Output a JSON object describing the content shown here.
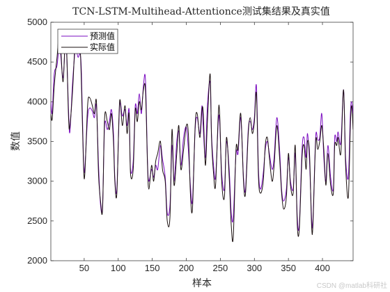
{
  "chart_data": {
    "type": "line",
    "title": "TCN-LSTM-Multihead-Attentionce测试集结果及真实值",
    "xlabel": "样本",
    "ylabel": "数值",
    "xlim": [
      1,
      445
    ],
    "ylim": [
      2000,
      5000
    ],
    "xticks": [
      50,
      100,
      150,
      200,
      250,
      300,
      350,
      400
    ],
    "yticks": [
      2000,
      2500,
      3000,
      3500,
      4000,
      4500,
      5000
    ],
    "grid": false,
    "legend_position": "top-left",
    "series": [
      {
        "name": "预测值",
        "color": "#7a0bc0",
        "keypoints": [
          [
            1,
            4000
          ],
          [
            3,
            3860
          ],
          [
            6,
            4350
          ],
          [
            10,
            4450
          ],
          [
            14,
            4700
          ],
          [
            19,
            4300
          ],
          [
            23,
            4800
          ],
          [
            27,
            3900
          ],
          [
            29,
            3620
          ],
          [
            33,
            4250
          ],
          [
            37,
            4650
          ],
          [
            41,
            4560
          ],
          [
            44,
            4600
          ],
          [
            46,
            4350
          ],
          [
            49,
            3250
          ],
          [
            51,
            3180
          ],
          [
            55,
            3800
          ],
          [
            58,
            3920
          ],
          [
            62,
            3880
          ],
          [
            65,
            3800
          ],
          [
            68,
            3950
          ],
          [
            71,
            3220
          ],
          [
            74,
            2700
          ],
          [
            77,
            2700
          ],
          [
            80,
            3700
          ],
          [
            84,
            3650
          ],
          [
            87,
            3750
          ],
          [
            90,
            3900
          ],
          [
            93,
            3600
          ],
          [
            95,
            3050
          ],
          [
            98,
            2900
          ],
          [
            102,
            3950
          ],
          [
            106,
            3820
          ],
          [
            110,
            3900
          ],
          [
            113,
            3700
          ],
          [
            116,
            3900
          ],
          [
            118,
            3150
          ],
          [
            122,
            3250
          ],
          [
            125,
            3950
          ],
          [
            128,
            3850
          ],
          [
            131,
            4100
          ],
          [
            134,
            3850
          ],
          [
            137,
            4200
          ],
          [
            140,
            4280
          ],
          [
            143,
            3250
          ],
          [
            145,
            3000
          ],
          [
            149,
            3150
          ],
          [
            152,
            3050
          ],
          [
            155,
            3200
          ],
          [
            158,
            3150
          ],
          [
            162,
            3450
          ],
          [
            165,
            3280
          ],
          [
            169,
            3050
          ],
          [
            172,
            2600
          ],
          [
            176,
            2700
          ],
          [
            179,
            3450
          ],
          [
            182,
            3000
          ],
          [
            186,
            3500
          ],
          [
            189,
            3620
          ],
          [
            192,
            3200
          ],
          [
            196,
            3550
          ],
          [
            200,
            3680
          ],
          [
            203,
            3400
          ],
          [
            206,
            2950
          ],
          [
            209,
            2750
          ],
          [
            213,
            3650
          ],
          [
            216,
            3800
          ],
          [
            220,
            3600
          ],
          [
            223,
            3950
          ],
          [
            225,
            3650
          ],
          [
            228,
            3300
          ],
          [
            231,
            3950
          ],
          [
            235,
            4250
          ],
          [
            237,
            3600
          ],
          [
            240,
            3200
          ],
          [
            243,
            3050
          ],
          [
            247,
            3750
          ],
          [
            249,
            3750
          ],
          [
            252,
            3100
          ],
          [
            256,
            2900
          ],
          [
            259,
            3500
          ],
          [
            263,
            3150
          ],
          [
            266,
            2600
          ],
          [
            269,
            2550
          ],
          [
            273,
            3350
          ],
          [
            276,
            3350
          ],
          [
            280,
            3800
          ],
          [
            284,
            3050
          ],
          [
            287,
            2900
          ],
          [
            291,
            3650
          ],
          [
            294,
            3750
          ],
          [
            297,
            3650
          ],
          [
            300,
            3800
          ],
          [
            303,
            4200
          ],
          [
            306,
            3150
          ],
          [
            309,
            2900
          ],
          [
            313,
            3100
          ],
          [
            316,
            3400
          ],
          [
            319,
            3500
          ],
          [
            322,
            3350
          ],
          [
            326,
            3150
          ],
          [
            329,
            3300
          ],
          [
            333,
            3800
          ],
          [
            337,
            3400
          ],
          [
            340,
            2900
          ],
          [
            343,
            2750
          ],
          [
            347,
            2900
          ],
          [
            350,
            3300
          ],
          [
            353,
            3000
          ],
          [
            357,
            2900
          ],
          [
            360,
            3350
          ],
          [
            363,
            2550
          ],
          [
            366,
            2450
          ],
          [
            370,
            3400
          ],
          [
            373,
            3550
          ],
          [
            376,
            3300
          ],
          [
            378,
            3600
          ],
          [
            381,
            3250
          ],
          [
            384,
            2550
          ],
          [
            386,
            2500
          ],
          [
            390,
            3550
          ],
          [
            393,
            3520
          ],
          [
            396,
            3550
          ],
          [
            399,
            3850
          ],
          [
            402,
            3300
          ],
          [
            405,
            3000
          ],
          [
            408,
            3450
          ],
          [
            412,
            3050
          ],
          [
            416,
            2900
          ],
          [
            418,
            3550
          ],
          [
            421,
            3500
          ],
          [
            423,
            3620
          ],
          [
            427,
            3480
          ],
          [
            431,
            4150
          ],
          [
            434,
            3300
          ],
          [
            438,
            3050
          ],
          [
            441,
            3850
          ],
          [
            443,
            4000
          ],
          [
            445,
            3850
          ]
        ]
      },
      {
        "name": "实际值",
        "color": "#1a0f0f",
        "keypoints": [
          [
            1,
            3850
          ],
          [
            3,
            3780
          ],
          [
            6,
            4200
          ],
          [
            10,
            4550
          ],
          [
            14,
            4850
          ],
          [
            19,
            4250
          ],
          [
            23,
            4900
          ],
          [
            27,
            3800
          ],
          [
            29,
            3700
          ],
          [
            33,
            4150
          ],
          [
            37,
            4800
          ],
          [
            41,
            4900
          ],
          [
            44,
            4700
          ],
          [
            46,
            4200
          ],
          [
            49,
            3200
          ],
          [
            51,
            3100
          ],
          [
            55,
            3950
          ],
          [
            58,
            4050
          ],
          [
            62,
            3950
          ],
          [
            65,
            3850
          ],
          [
            68,
            4000
          ],
          [
            71,
            3100
          ],
          [
            74,
            2750
          ],
          [
            77,
            2650
          ],
          [
            80,
            3800
          ],
          [
            84,
            3750
          ],
          [
            87,
            3650
          ],
          [
            90,
            3850
          ],
          [
            93,
            3500
          ],
          [
            95,
            3000
          ],
          [
            98,
            2850
          ],
          [
            102,
            4000
          ],
          [
            106,
            3700
          ],
          [
            110,
            3950
          ],
          [
            113,
            3600
          ],
          [
            116,
            3850
          ],
          [
            118,
            3100
          ],
          [
            122,
            3150
          ],
          [
            125,
            3900
          ],
          [
            128,
            3750
          ],
          [
            131,
            4000
          ],
          [
            134,
            3900
          ],
          [
            137,
            4150
          ],
          [
            140,
            4150
          ],
          [
            143,
            3200
          ],
          [
            145,
            2900
          ],
          [
            149,
            3200
          ],
          [
            152,
            3000
          ],
          [
            155,
            3250
          ],
          [
            158,
            3350
          ],
          [
            162,
            3500
          ],
          [
            165,
            3150
          ],
          [
            169,
            3000
          ],
          [
            172,
            2500
          ],
          [
            176,
            2550
          ],
          [
            179,
            3650
          ],
          [
            182,
            2950
          ],
          [
            186,
            3350
          ],
          [
            189,
            3700
          ],
          [
            192,
            3150
          ],
          [
            196,
            3400
          ],
          [
            200,
            3700
          ],
          [
            203,
            3600
          ],
          [
            206,
            2850
          ],
          [
            209,
            2650
          ],
          [
            213,
            3700
          ],
          [
            216,
            3850
          ],
          [
            220,
            3550
          ],
          [
            223,
            3900
          ],
          [
            225,
            3850
          ],
          [
            228,
            3200
          ],
          [
            231,
            3750
          ],
          [
            235,
            4350
          ],
          [
            237,
            3550
          ],
          [
            240,
            3100
          ],
          [
            243,
            2950
          ],
          [
            247,
            3850
          ],
          [
            249,
            3850
          ],
          [
            252,
            3000
          ],
          [
            256,
            2800
          ],
          [
            259,
            3550
          ],
          [
            263,
            3050
          ],
          [
            266,
            2450
          ],
          [
            269,
            2300
          ],
          [
            273,
            3400
          ],
          [
            276,
            3400
          ],
          [
            280,
            3850
          ],
          [
            284,
            3000
          ],
          [
            287,
            2850
          ],
          [
            291,
            3600
          ],
          [
            294,
            3800
          ],
          [
            297,
            3600
          ],
          [
            300,
            3750
          ],
          [
            303,
            4100
          ],
          [
            306,
            3050
          ],
          [
            309,
            2850
          ],
          [
            313,
            3000
          ],
          [
            316,
            3450
          ],
          [
            319,
            3550
          ],
          [
            322,
            3300
          ],
          [
            326,
            3000
          ],
          [
            329,
            3200
          ],
          [
            333,
            3700
          ],
          [
            337,
            3300
          ],
          [
            340,
            2850
          ],
          [
            343,
            2650
          ],
          [
            347,
            2800
          ],
          [
            350,
            3350
          ],
          [
            353,
            2950
          ],
          [
            357,
            2850
          ],
          [
            360,
            3450
          ],
          [
            363,
            2450
          ],
          [
            366,
            2400
          ],
          [
            370,
            3300
          ],
          [
            373,
            3450
          ],
          [
            376,
            3150
          ],
          [
            378,
            3500
          ],
          [
            381,
            3350
          ],
          [
            384,
            2450
          ],
          [
            386,
            2450
          ],
          [
            390,
            3500
          ],
          [
            393,
            3400
          ],
          [
            396,
            3500
          ],
          [
            399,
            3700
          ],
          [
            402,
            3400
          ],
          [
            405,
            2950
          ],
          [
            408,
            3350
          ],
          [
            412,
            2950
          ],
          [
            416,
            2850
          ],
          [
            418,
            3450
          ],
          [
            421,
            3450
          ],
          [
            423,
            3550
          ],
          [
            427,
            3350
          ],
          [
            431,
            4150
          ],
          [
            434,
            3200
          ],
          [
            438,
            2800
          ],
          [
            441,
            3700
          ],
          [
            443,
            3950
          ],
          [
            445,
            3650
          ]
        ]
      }
    ]
  },
  "watermark": "CSDN @matlab科研社"
}
